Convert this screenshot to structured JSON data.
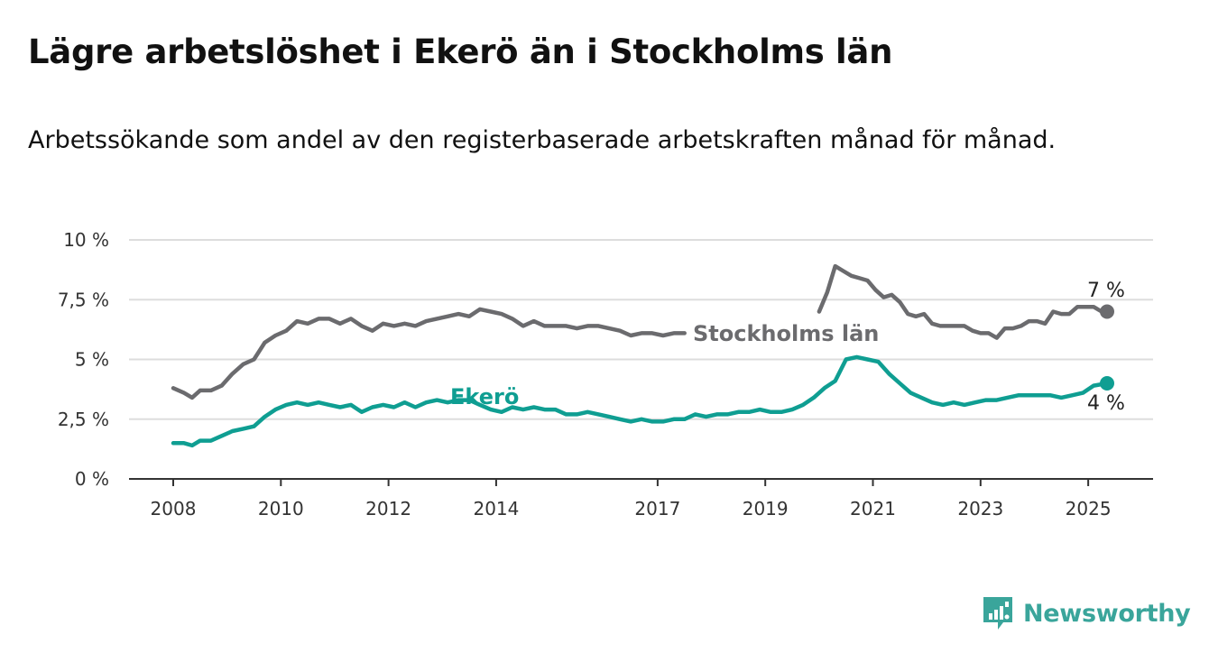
{
  "title": "Lägre arbetslöshet i Ekerö än i Stockholms län",
  "subtitle": "Arbetssökande som andel av den registerbaserade arbetskraften månad för månad.",
  "logo": {
    "icon": "newsworthy-logo-icon",
    "text": "Newsworthy"
  },
  "colors": {
    "stockholm": "#6b6b6e",
    "ekero": "#0f9e92",
    "grid": "#dddddd",
    "axis": "#333333",
    "brand": "#3aa59b"
  },
  "chart_data": {
    "type": "line",
    "title": "Lägre arbetslöshet i Ekerö än i Stockholms län",
    "subtitle": "Arbetssökande som andel av den registerbaserade arbetskraften månad för månad.",
    "xlabel": "",
    "ylabel": "",
    "xlim": [
      2008,
      2025.6
    ],
    "ylim": [
      0,
      10
    ],
    "x_ticks": [
      "2008",
      "2010",
      "2012",
      "2014",
      "2017",
      "2019",
      "2021",
      "2023",
      "2025"
    ],
    "y_ticks": [
      "0 %",
      "2,5 %",
      "5 %",
      "7,5 %",
      "10 %"
    ],
    "grid": true,
    "legend": "direct labels",
    "series": [
      {
        "name": "Stockholms län",
        "end_label": "7 %",
        "x": [
          2008.0,
          2008.2,
          2008.35,
          2008.5,
          2008.7,
          2008.9,
          2009.1,
          2009.3,
          2009.5,
          2009.7,
          2009.9,
          2010.1,
          2010.3,
          2010.5,
          2010.7,
          2010.9,
          2011.1,
          2011.3,
          2011.5,
          2011.7,
          2011.9,
          2012.1,
          2012.3,
          2012.5,
          2012.7,
          2012.9,
          2013.1,
          2013.3,
          2013.5,
          2013.7,
          2013.9,
          2014.1,
          2014.3,
          2014.5,
          2014.7,
          2014.9,
          2015.1,
          2015.3,
          2015.5,
          2015.7,
          2015.9,
          2016.1,
          2016.3,
          2016.5,
          2016.7,
          2016.9,
          2017.1,
          2017.3,
          2017.5
        ],
        "y": [
          3.8,
          3.6,
          3.4,
          3.7,
          3.7,
          3.9,
          4.4,
          4.8,
          5.0,
          5.7,
          6.0,
          6.2,
          6.6,
          6.5,
          6.7,
          6.7,
          6.5,
          6.7,
          6.4,
          6.2,
          6.5,
          6.4,
          6.5,
          6.4,
          6.6,
          6.7,
          6.8,
          6.9,
          6.8,
          7.1,
          7.0,
          6.9,
          6.7,
          6.4,
          6.6,
          6.4,
          6.4,
          6.4,
          6.3,
          6.4,
          6.4,
          6.3,
          6.2,
          6.0,
          6.1,
          6.1,
          6.0,
          6.1,
          6.1
        ]
      },
      {
        "name": "Stockholms län (forts.)",
        "x": [
          2020.0,
          2020.15,
          2020.3,
          2020.45,
          2020.6,
          2020.75,
          2020.9,
          2021.05,
          2021.2,
          2021.35,
          2021.5,
          2021.65,
          2021.8,
          2021.95,
          2022.1,
          2022.25,
          2022.4,
          2022.55,
          2022.7,
          2022.85,
          2023.0,
          2023.15,
          2023.3,
          2023.45,
          2023.6,
          2023.75,
          2023.9,
          2024.05,
          2024.2,
          2024.35,
          2024.5,
          2024.65,
          2024.8,
          2024.95,
          2025.1,
          2025.25,
          2025.35
        ],
        "y": [
          7.0,
          7.8,
          8.9,
          8.7,
          8.5,
          8.4,
          8.3,
          7.9,
          7.6,
          7.7,
          7.4,
          6.9,
          6.8,
          6.9,
          6.5,
          6.4,
          6.4,
          6.4,
          6.4,
          6.2,
          6.1,
          6.1,
          5.9,
          6.3,
          6.3,
          6.4,
          6.6,
          6.6,
          6.5,
          7.0,
          6.9,
          6.9,
          7.2,
          7.2,
          7.2,
          7.0,
          7.0
        ]
      },
      {
        "name": "Ekerö",
        "end_label": "4 %",
        "x": [
          2008.0,
          2008.2,
          2008.35,
          2008.5,
          2008.7,
          2008.9,
          2009.1,
          2009.3,
          2009.5,
          2009.7,
          2009.9,
          2010.1,
          2010.3,
          2010.5,
          2010.7,
          2010.9,
          2011.1,
          2011.3,
          2011.5,
          2011.7,
          2011.9,
          2012.1,
          2012.3,
          2012.5,
          2012.7,
          2012.9,
          2013.1,
          2013.3,
          2013.5,
          2013.7,
          2013.9,
          2014.1,
          2014.3,
          2014.5,
          2014.7,
          2014.9,
          2015.1,
          2015.3,
          2015.5,
          2015.7,
          2015.9,
          2016.1,
          2016.3,
          2016.5,
          2016.7,
          2016.9,
          2017.1,
          2017.3,
          2017.5,
          2017.7,
          2017.9,
          2018.1,
          2018.3,
          2018.5,
          2018.7,
          2018.9,
          2019.1,
          2019.3,
          2019.5,
          2019.7,
          2019.9,
          2020.1,
          2020.3,
          2020.5,
          2020.7,
          2020.9,
          2021.1,
          2021.3,
          2021.5,
          2021.7,
          2021.9,
          2022.1,
          2022.3,
          2022.5,
          2022.7,
          2022.9,
          2023.1,
          2023.3,
          2023.5,
          2023.7,
          2023.9,
          2024.1,
          2024.3,
          2024.5,
          2024.7,
          2024.9,
          2025.1,
          2025.35
        ],
        "y": [
          1.5,
          1.5,
          1.4,
          1.6,
          1.6,
          1.8,
          2.0,
          2.1,
          2.2,
          2.6,
          2.9,
          3.1,
          3.2,
          3.1,
          3.2,
          3.1,
          3.0,
          3.1,
          2.8,
          3.0,
          3.1,
          3.0,
          3.2,
          3.0,
          3.2,
          3.3,
          3.2,
          3.3,
          3.3,
          3.1,
          2.9,
          2.8,
          3.0,
          2.9,
          3.0,
          2.9,
          2.9,
          2.7,
          2.7,
          2.8,
          2.7,
          2.6,
          2.5,
          2.4,
          2.5,
          2.4,
          2.4,
          2.5,
          2.5,
          2.7,
          2.6,
          2.7,
          2.7,
          2.8,
          2.8,
          2.9,
          2.8,
          2.8,
          2.9,
          3.1,
          3.4,
          3.8,
          4.1,
          5.0,
          5.1,
          5.0,
          4.9,
          4.4,
          4.0,
          3.6,
          3.4,
          3.2,
          3.1,
          3.2,
          3.1,
          3.2,
          3.3,
          3.3,
          3.4,
          3.5,
          3.5,
          3.5,
          3.5,
          3.4,
          3.5,
          3.6,
          3.9,
          4.0
        ]
      }
    ]
  }
}
